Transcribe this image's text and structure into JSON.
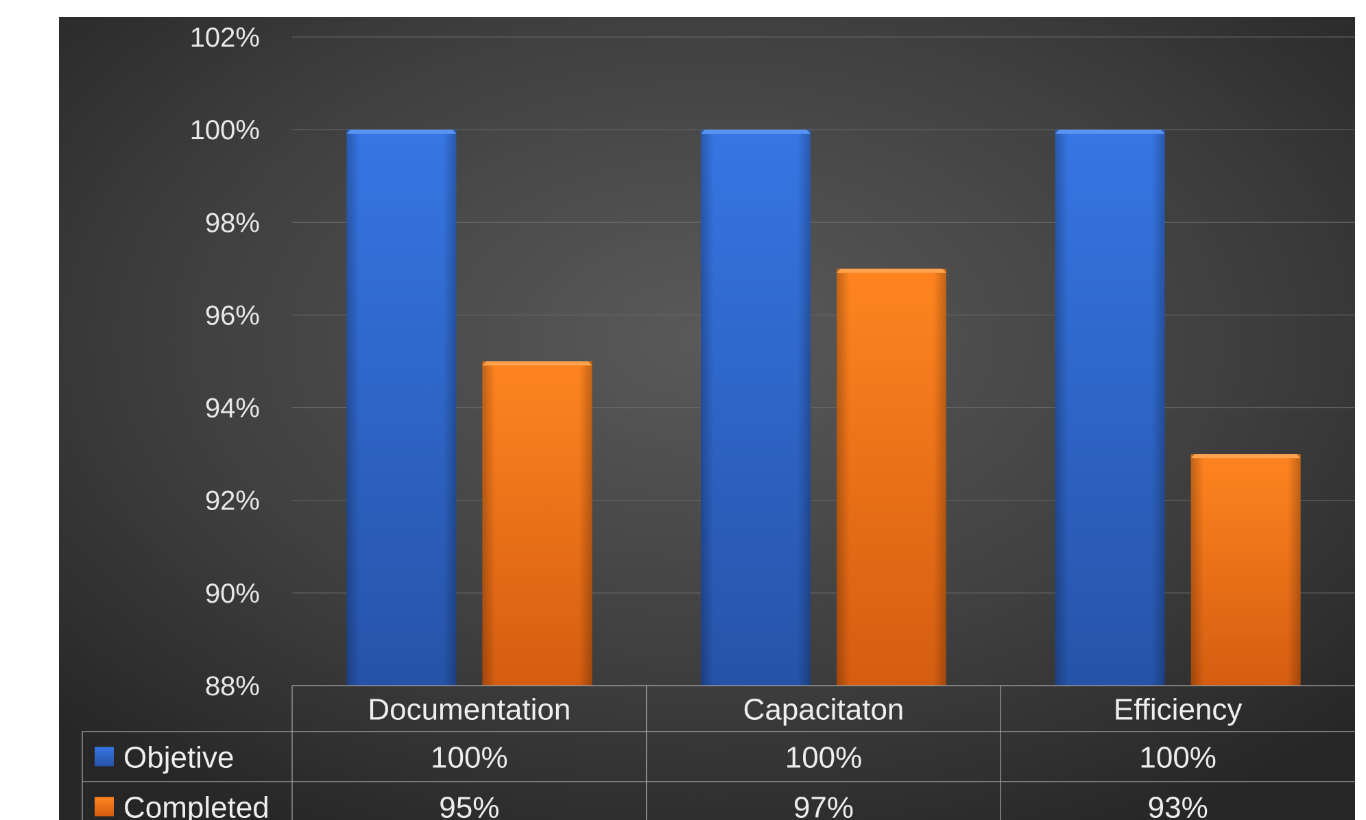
{
  "chart_data": {
    "type": "bar",
    "categories": [
      "Documentation",
      "Capacitaton",
      "Efficiency"
    ],
    "series": [
      {
        "name": "Objetive",
        "values": [
          1.0,
          1.0,
          1.0
        ],
        "labels": [
          "100%",
          "100%",
          "100%"
        ],
        "color": "#3a78e6"
      },
      {
        "name": "Completed",
        "values": [
          0.95,
          0.97,
          0.93
        ],
        "labels": [
          "95%",
          "97%",
          "93%"
        ],
        "color": "#fb7e1c"
      }
    ],
    "ylim": [
      0.88,
      1.02
    ],
    "yticks": [
      1.02,
      1.0,
      0.98,
      0.96,
      0.94,
      0.92,
      0.9,
      0.88
    ],
    "ytick_labels": [
      "102%",
      "100%",
      "98%",
      "96%",
      "94%",
      "92%",
      "90%",
      "88%"
    ],
    "grid": true,
    "data_table": true,
    "legend": "data-table-left"
  },
  "colors": {
    "background_center": "#595959",
    "background_edge": "#262626",
    "gridline": "#6a6a6a",
    "text": "#eeeeee"
  }
}
